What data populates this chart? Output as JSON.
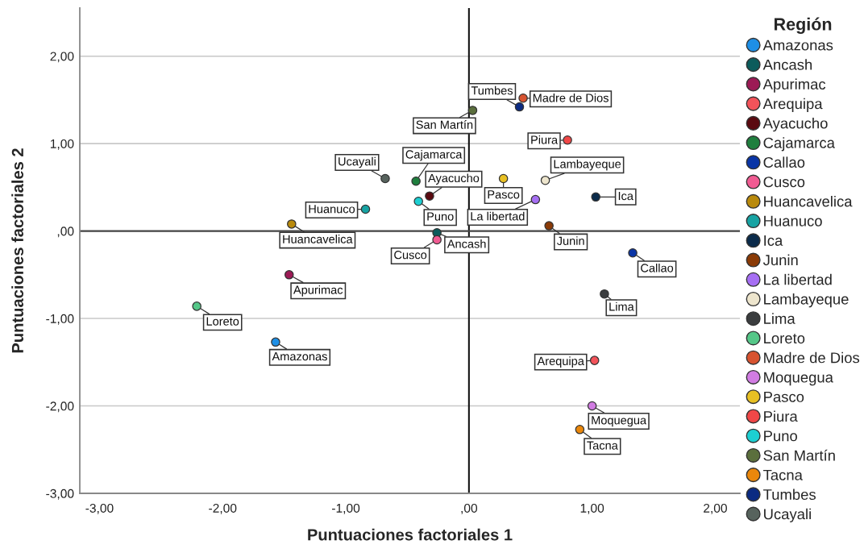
{
  "chart_data": {
    "type": "scatter",
    "xlabel": "Puntuaciones factoriales 1",
    "ylabel": "Puntuaciones factoriales 2",
    "legend_title": "Región",
    "xlim": [
      -3.16,
      2.2
    ],
    "ylim": [
      -3.0,
      2.55
    ],
    "xticks": [
      {
        "value": -3,
        "label": "-3,00"
      },
      {
        "value": -2,
        "label": "-2,00"
      },
      {
        "value": -1,
        "label": "-1,00"
      },
      {
        "value": 0,
        "label": ",00"
      },
      {
        "value": 1,
        "label": "1,00"
      },
      {
        "value": 2,
        "label": "2,00"
      }
    ],
    "yticks": [
      {
        "value": -3,
        "label": "-3,00"
      },
      {
        "value": -2,
        "label": "-2,00"
      },
      {
        "value": -1,
        "label": "-1,00"
      },
      {
        "value": 0,
        "label": ",00"
      },
      {
        "value": 1,
        "label": "1,00"
      },
      {
        "value": 2,
        "label": "2,00"
      }
    ],
    "grid": "y",
    "legend": "right",
    "marker": "circle",
    "ref_lines": [
      {
        "axis": "x",
        "value": 0,
        "color": "#111111"
      },
      {
        "axis": "y",
        "value": 0,
        "color": "#444444"
      }
    ],
    "series": [
      {
        "name": "Amazonas",
        "color": "#1e8fe6",
        "x": [
          -1.57
        ],
        "values": [
          -1.27
        ]
      },
      {
        "name": "Ancash",
        "color": "#0c5c5c",
        "x": [
          -0.26
        ],
        "values": [
          -0.02
        ]
      },
      {
        "name": "Apurimac",
        "color": "#9c1a55",
        "x": [
          -1.46
        ],
        "values": [
          -0.5
        ]
      },
      {
        "name": "Arequipa",
        "color": "#f3535a",
        "x": [
          1.02
        ],
        "values": [
          -1.48
        ]
      },
      {
        "name": "Ayacucho",
        "color": "#5a0a10",
        "x": [
          -0.32
        ],
        "values": [
          0.4
        ]
      },
      {
        "name": "Cajamarca",
        "color": "#1f7f3e",
        "x": [
          -0.43
        ],
        "values": [
          0.57
        ]
      },
      {
        "name": "Callao",
        "color": "#0a35a6",
        "x": [
          1.33
        ],
        "values": [
          -0.25
        ]
      },
      {
        "name": "Cusco",
        "color": "#f05b92",
        "x": [
          -0.26
        ],
        "values": [
          -0.1
        ]
      },
      {
        "name": "Huancavelica",
        "color": "#b98a0c",
        "x": [
          -1.44
        ],
        "values": [
          0.08
        ]
      },
      {
        "name": "Huanuco",
        "color": "#17a3a3",
        "x": [
          -0.84
        ],
        "values": [
          0.25
        ]
      },
      {
        "name": "Ica",
        "color": "#0b2b4b",
        "x": [
          1.03
        ],
        "values": [
          0.39
        ]
      },
      {
        "name": "Junin",
        "color": "#8a3a06",
        "x": [
          0.65
        ],
        "values": [
          0.06
        ]
      },
      {
        "name": "La libertad",
        "color": "#a66ff3",
        "x": [
          0.54
        ],
        "values": [
          0.36
        ]
      },
      {
        "name": "Lambayeque",
        "color": "#ede5cd",
        "x": [
          0.62
        ],
        "values": [
          0.58
        ]
      },
      {
        "name": "Lima",
        "color": "#3b3d3f",
        "x": [
          1.1
        ],
        "values": [
          -0.72
        ]
      },
      {
        "name": "Loreto",
        "color": "#55c788",
        "x": [
          -2.21
        ],
        "values": [
          -0.86
        ]
      },
      {
        "name": "Madre de Dios",
        "color": "#d75330",
        "x": [
          0.44
        ],
        "values": [
          1.52
        ]
      },
      {
        "name": "Moquegua",
        "color": "#d17ce2",
        "x": [
          1.0
        ],
        "values": [
          -2.0
        ]
      },
      {
        "name": "Pasco",
        "color": "#e8c023",
        "x": [
          0.28
        ],
        "values": [
          0.6
        ]
      },
      {
        "name": "Piura",
        "color": "#f04747",
        "x": [
          0.8
        ],
        "values": [
          1.04
        ]
      },
      {
        "name": "Puno",
        "color": "#1dcfd2",
        "x": [
          -0.41
        ],
        "values": [
          0.34
        ]
      },
      {
        "name": "San Martín",
        "color": "#5b6f3d",
        "x": [
          0.03
        ],
        "values": [
          1.38
        ]
      },
      {
        "name": "Tacna",
        "color": "#ea870b",
        "x": [
          0.9
        ],
        "values": [
          -2.27
        ]
      },
      {
        "name": "Tumbes",
        "color": "#0b2b82",
        "x": [
          0.41
        ],
        "values": [
          1.42
        ]
      },
      {
        "name": "Ucayali",
        "color": "#57635d",
        "x": [
          -0.68
        ],
        "values": [
          0.6
        ]
      }
    ]
  }
}
